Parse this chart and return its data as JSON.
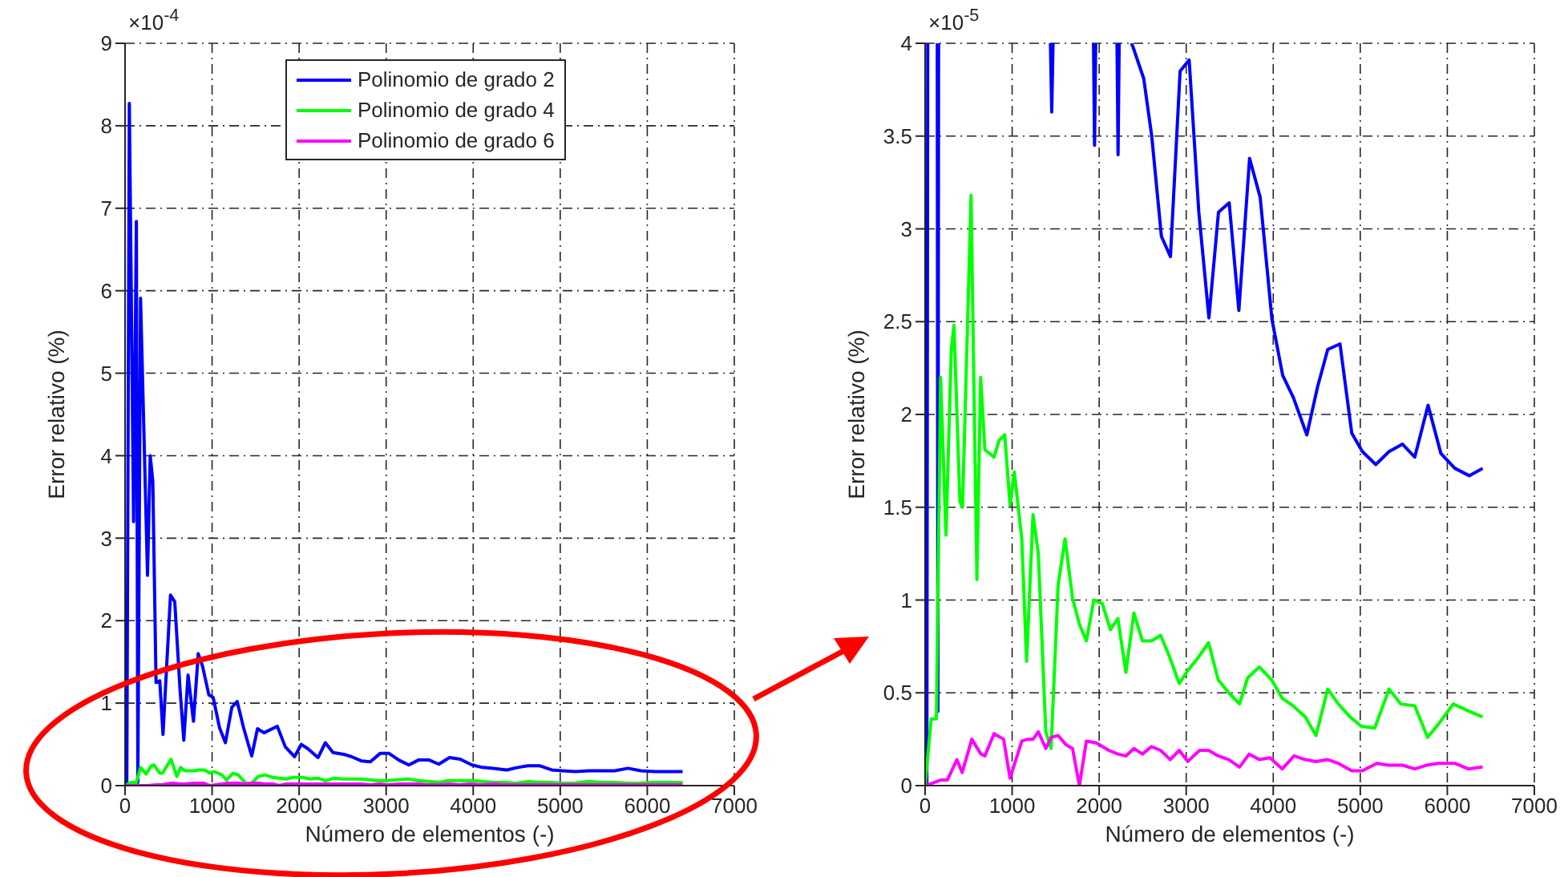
{
  "chart_data": [
    {
      "type": "line",
      "xlabel": "Número de elementos (-)",
      "ylabel": "Error relativo (%)",
      "annotations": [
        "×10$^{-4}$"
      ],
      "xlim": [
        0,
        7000
      ],
      "xticks": [
        0,
        1000,
        2000,
        3000,
        4000,
        5000,
        6000,
        7000
      ],
      "ylim": [
        0,
        9
      ],
      "yticks": [
        0,
        1,
        2,
        3,
        4,
        5,
        6,
        7,
        8,
        9
      ],
      "grid": true,
      "legend": "top",
      "series": [
        {
          "name": "Polinomio de grado 2",
          "color": "#0000ff",
          "x": [
            20,
            49,
            98,
            130,
            147,
            178,
            258,
            289,
            319,
            356,
            399,
            436,
            522,
            571,
            632,
            675,
            724,
            786,
            841,
            890,
            963,
            1012,
            1086,
            1153,
            1227,
            1288,
            1362,
            1455,
            1522,
            1596,
            1749,
            1841,
            1947,
            2025,
            2098,
            2217,
            2301,
            2389,
            2512,
            2604,
            2715,
            2819,
            2930,
            3034,
            3145,
            3261,
            3371,
            3494,
            3605,
            3728,
            3850,
            3986,
            4109,
            4232,
            4386,
            4510,
            4626,
            4767,
            4902,
            5024,
            5178,
            5331,
            5485,
            5626,
            5779,
            5926,
            6086,
            6252,
            6406
          ],
          "values": [
            0,
            8.27,
            3.2,
            6.84,
            0.04,
            5.91,
            2.55,
            4.0,
            3.69,
            1.25,
            1.27,
            0.62,
            2.31,
            2.23,
            1.16,
            0.55,
            1.34,
            0.78,
            1.6,
            1.45,
            1.1,
            1.07,
            0.7,
            0.52,
            0.95,
            1.02,
            0.7,
            0.36,
            0.69,
            0.64,
            0.72,
            0.47,
            0.35,
            0.5,
            0.45,
            0.34,
            0.52,
            0.4,
            0.38,
            0.35,
            0.3,
            0.29,
            0.39,
            0.39,
            0.31,
            0.25,
            0.31,
            0.31,
            0.26,
            0.34,
            0.32,
            0.25,
            0.22,
            0.21,
            0.19,
            0.22,
            0.24,
            0.24,
            0.19,
            0.18,
            0.17,
            0.18,
            0.18,
            0.18,
            0.21,
            0.18,
            0.17,
            0.17,
            0.17
          ]
        },
        {
          "name": "Polinomio de grado 4",
          "color": "#00ff00",
          "x": [
            0,
            70,
            130,
            178,
            240,
            301,
            332,
            400,
            430,
            528,
            595,
            638,
            687,
            792,
            850,
            915,
            976,
            1025,
            1111,
            1166,
            1240,
            1301,
            1387,
            1448,
            1528,
            1608,
            1694,
            1773,
            1853,
            1939,
            2037,
            2129,
            2215,
            2307,
            2399,
            2497,
            2601,
            2706,
            2804,
            2920,
            3018,
            3122,
            3257,
            3368,
            3490,
            3613,
            3705,
            3840,
            3981,
            4104,
            4227,
            4368,
            4491,
            4626,
            4748,
            4883,
            5012,
            5166,
            5331,
            5466,
            5626,
            5773,
            5896,
            6068,
            6252,
            6406
          ],
          "values": [
            0,
            0.04,
            0.04,
            0.22,
            0.14,
            0.24,
            0.25,
            0.15,
            0.15,
            0.32,
            0.11,
            0.22,
            0.18,
            0.18,
            0.19,
            0.19,
            0.15,
            0.17,
            0.13,
            0.07,
            0.15,
            0.13,
            0.03,
            0.02,
            0.11,
            0.13,
            0.1,
            0.09,
            0.08,
            0.1,
            0.1,
            0.08,
            0.09,
            0.06,
            0.09,
            0.08,
            0.08,
            0.08,
            0.07,
            0.06,
            0.06,
            0.07,
            0.08,
            0.06,
            0.05,
            0.04,
            0.06,
            0.06,
            0.06,
            0.05,
            0.04,
            0.04,
            0.03,
            0.05,
            0.04,
            0.04,
            0.03,
            0.03,
            0.05,
            0.04,
            0.04,
            0.03,
            0.03,
            0.04,
            0.04,
            0.04
          ]
        },
        {
          "name": "Polinomio de grado 6",
          "color": "#ff00ff",
          "x": [
            0,
            180,
            255,
            365,
            426,
            537,
            641,
            687,
            792,
            902,
            976,
            1111,
            1178,
            1240,
            1301,
            1387,
            1448,
            1528,
            1620,
            1694,
            1773,
            1853,
            1969,
            2110,
            2215,
            2307,
            2399,
            2497,
            2601,
            2706,
            2816,
            2920,
            3018,
            3153,
            3257,
            3368,
            3490,
            3613,
            3724,
            3840,
            3963,
            4104,
            4239,
            4368,
            4491,
            4626,
            4748,
            4902,
            5024,
            5190,
            5319,
            5485,
            5626,
            5761,
            5896,
            6086,
            6240,
            6406
          ],
          "values": [
            0,
            0,
            0,
            0.01,
            0.01,
            0.03,
            0.02,
            0.02,
            0.03,
            0.03,
            0,
            0.02,
            0.03,
            0.03,
            0.03,
            0.02,
            0.03,
            0.03,
            0.02,
            0.02,
            0,
            0.02,
            0.02,
            0.02,
            0.02,
            0.02,
            0.02,
            0.02,
            0.02,
            0.02,
            0.01,
            0.02,
            0.01,
            0.02,
            0.02,
            0.02,
            0.01,
            0.01,
            0.02,
            0.01,
            0.02,
            0.01,
            0.02,
            0.01,
            0.01,
            0.01,
            0.01,
            0.01,
            0.01,
            0.01,
            0.01,
            0.01,
            0.01,
            0.01,
            0.01,
            0.01,
            0.01,
            0.01
          ]
        }
      ]
    },
    {
      "type": "line",
      "xlabel": "Número de elementos (-)",
      "ylabel": "Error relativo (%)",
      "annotations": [
        "×10$^{-5}$"
      ],
      "xlim": [
        0,
        7000
      ],
      "xticks": [
        0,
        1000,
        2000,
        3000,
        4000,
        5000,
        6000,
        7000
      ],
      "ylim": [
        0,
        4
      ],
      "yticks": [
        0,
        0.5,
        1,
        1.5,
        2,
        2.5,
        3,
        3.5,
        4
      ],
      "grid": true,
      "series": [
        {
          "color": "#0000ff",
          "x": [
            20,
            30,
            80,
            140,
            147,
            155,
            800,
            1440,
            1455,
            1470,
            1700,
            1935,
            1947,
            1960,
            2100,
            2205,
            2217,
            2230,
            2300,
            2370,
            2389,
            2512,
            2604,
            2715,
            2819,
            2930,
            3034,
            3145,
            3261,
            3371,
            3494,
            3605,
            3728,
            3850,
            3986,
            4109,
            4232,
            4386,
            4510,
            4626,
            4767,
            4902,
            5024,
            5178,
            5331,
            5485,
            5626,
            5779,
            5926,
            6086,
            6252,
            6406
          ],
          "values": [
            0,
            4,
            null,
            4,
            0.4,
            4,
            null,
            4,
            3.63,
            4,
            null,
            4,
            3.45,
            4,
            null,
            4,
            3.4,
            4,
            null,
            4,
            3.98,
            3.81,
            3.5,
            2.96,
            2.85,
            3.85,
            3.91,
            3.09,
            2.52,
            3.09,
            3.14,
            2.56,
            3.38,
            3.17,
            2.51,
            2.21,
            2.09,
            1.89,
            2.15,
            2.35,
            2.38,
            1.9,
            1.8,
            1.73,
            1.8,
            1.84,
            1.77,
            2.05,
            1.79,
            1.71,
            1.67,
            1.71
          ]
        },
        {
          "color": "#00ff00",
          "x": [
            0,
            70,
            130,
            178,
            240,
            301,
            332,
            400,
            430,
            528,
            595,
            638,
            687,
            792,
            850,
            915,
            976,
            1025,
            1111,
            1166,
            1240,
            1301,
            1387,
            1448,
            1528,
            1608,
            1694,
            1773,
            1853,
            1939,
            2037,
            2129,
            2215,
            2307,
            2399,
            2497,
            2601,
            2706,
            2804,
            2920,
            3018,
            3122,
            3257,
            3368,
            3490,
            3613,
            3705,
            3840,
            3981,
            4104,
            4227,
            4368,
            4491,
            4626,
            4748,
            4883,
            5012,
            5166,
            5331,
            5466,
            5626,
            5773,
            5896,
            6068,
            6252,
            6406
          ],
          "values": [
            0,
            0.36,
            0.36,
            2.2,
            1.35,
            2.35,
            2.48,
            1.53,
            1.5,
            3.18,
            1.11,
            2.2,
            1.81,
            1.77,
            1.86,
            1.89,
            1.51,
            1.69,
            1.33,
            0.67,
            1.46,
            1.25,
            0.29,
            0.2,
            1.08,
            1.33,
            1.01,
            0.87,
            0.78,
            1.0,
            0.98,
            0.84,
            0.9,
            0.61,
            0.93,
            0.78,
            0.78,
            0.81,
            0.7,
            0.55,
            0.62,
            0.68,
            0.77,
            0.57,
            0.5,
            0.44,
            0.58,
            0.64,
            0.57,
            0.47,
            0.43,
            0.37,
            0.27,
            0.52,
            0.44,
            0.37,
            0.32,
            0.31,
            0.52,
            0.44,
            0.43,
            0.26,
            0.33,
            0.44,
            0.4,
            0.37
          ]
        },
        {
          "color": "#ff00ff",
          "x": [
            0,
            180,
            255,
            365,
            426,
            537,
            641,
            687,
            792,
            902,
            976,
            1111,
            1178,
            1240,
            1301,
            1387,
            1448,
            1528,
            1620,
            1694,
            1773,
            1853,
            1969,
            2110,
            2215,
            2307,
            2399,
            2497,
            2601,
            2706,
            2816,
            2920,
            3018,
            3153,
            3257,
            3368,
            3490,
            3613,
            3724,
            3840,
            3963,
            4104,
            4239,
            4368,
            4491,
            4626,
            4748,
            4902,
            5024,
            5190,
            5319,
            5485,
            5626,
            5761,
            5896,
            6086,
            6240,
            6406
          ],
          "values": [
            0,
            0.03,
            0.03,
            0.14,
            0.07,
            0.25,
            0.17,
            0.16,
            0.28,
            0.25,
            0.04,
            0.24,
            0.25,
            0.25,
            0.29,
            0.2,
            0.26,
            0.27,
            0.22,
            0.2,
            0,
            0.24,
            0.23,
            0.19,
            0.17,
            0.16,
            0.2,
            0.17,
            0.21,
            0.19,
            0.14,
            0.19,
            0.13,
            0.19,
            0.19,
            0.16,
            0.14,
            0.1,
            0.17,
            0.14,
            0.15,
            0.09,
            0.16,
            0.14,
            0.13,
            0.14,
            0.12,
            0.08,
            0.08,
            0.12,
            0.11,
            0.11,
            0.09,
            0.11,
            0.12,
            0.12,
            0.09,
            0.1
          ]
        }
      ]
    }
  ]
}
